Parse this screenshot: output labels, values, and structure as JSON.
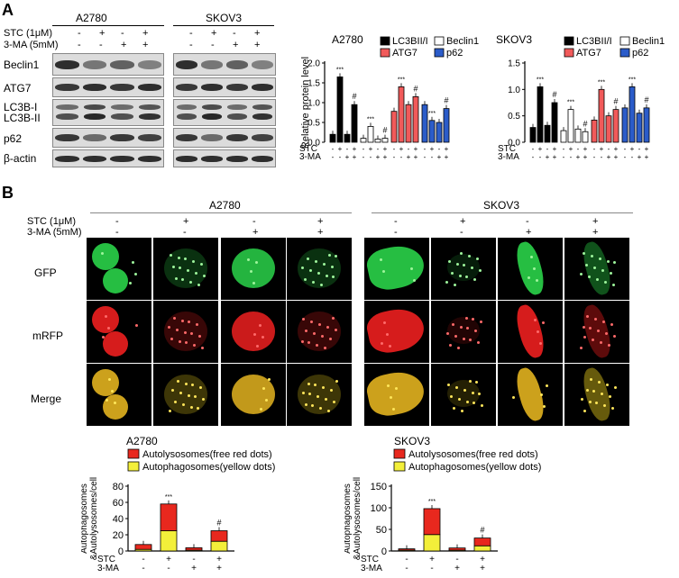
{
  "panel_a": {
    "letter": "A",
    "blot": {
      "cell_lines": [
        "A2780",
        "SKOV3"
      ],
      "row_labels": [
        "Beclin1",
        "ATG7",
        "LC3B-I",
        "LC3B-II",
        "p62",
        "β-actin"
      ],
      "treatments": [
        {
          "label": "STC (1μM)",
          "signs": [
            "-",
            "+",
            "-",
            "+"
          ]
        },
        {
          "label": "3-MA (5mM)",
          "signs": [
            "-",
            "-",
            "+",
            "+"
          ]
        }
      ]
    }
  },
  "panel_b": {
    "letter": "B",
    "cell_lines": [
      "A2780",
      "SKOV3"
    ],
    "treatments": [
      {
        "label": "STC (1μM)",
        "signs": [
          "-",
          "+",
          "-",
          "+"
        ]
      },
      {
        "label": "3-MA (5mM)",
        "signs": [
          "-",
          "-",
          "+",
          "+"
        ]
      }
    ],
    "row_labels": [
      "GFP",
      "mRFP",
      "Merge"
    ]
  },
  "colors": {
    "LC3BII/I": "#000000",
    "Beclin1": "#ffffff",
    "ATG7": "#f15a5a",
    "p62": "#2b5cc9",
    "autolysosomes": "#e8281e",
    "autophagosomes": "#f3ef3a"
  },
  "chart_data": [
    {
      "type": "bar",
      "title": "A2780",
      "ylabel": "Relative protein level",
      "ylim": [
        0,
        2.0
      ],
      "yticks": [
        "0.0",
        "0.5",
        "1.0",
        "1.5",
        "2.0"
      ],
      "legend": [
        "LC3BII/I",
        "Beclin1",
        "ATG7",
        "p62"
      ],
      "categories": [
        "-/-",
        "+/-",
        "-/+",
        "+/+"
      ],
      "series": [
        {
          "name": "LC3BII/I",
          "values": [
            0.2,
            1.65,
            0.2,
            0.95
          ],
          "annotations": [
            "",
            "***",
            "",
            "#"
          ]
        },
        {
          "name": "Beclin1",
          "values": [
            0.1,
            0.4,
            0.08,
            0.1
          ],
          "annotations": [
            "",
            "***",
            "",
            "#"
          ]
        },
        {
          "name": "ATG7",
          "values": [
            0.78,
            1.4,
            0.95,
            1.15
          ],
          "annotations": [
            "",
            "***",
            "",
            "#"
          ]
        },
        {
          "name": "p62",
          "values": [
            0.95,
            0.55,
            0.5,
            0.85
          ],
          "annotations": [
            "",
            "***",
            "",
            "#"
          ]
        }
      ],
      "x_rows": [
        {
          "label": "STC",
          "signs": [
            "-",
            "+",
            "-",
            "+"
          ]
        },
        {
          "label": "3-MA",
          "signs": [
            "-",
            "-",
            "+",
            "+"
          ]
        }
      ]
    },
    {
      "type": "bar",
      "title": "SKOV3",
      "ylabel": "",
      "ylim": [
        0,
        1.5
      ],
      "yticks": [
        "0.0",
        "0.5",
        "1.0",
        "1.5"
      ],
      "legend": [
        "LC3BII/I",
        "Beclin1",
        "ATG7",
        "p62"
      ],
      "categories": [
        "-/-",
        "+/-",
        "-/+",
        "+/+"
      ],
      "series": [
        {
          "name": "LC3BII/I",
          "values": [
            0.28,
            1.05,
            0.32,
            0.75
          ],
          "annotations": [
            "",
            "***",
            "",
            "#"
          ]
        },
        {
          "name": "Beclin1",
          "values": [
            0.22,
            0.62,
            0.25,
            0.2
          ],
          "annotations": [
            "",
            "***",
            "",
            "#"
          ]
        },
        {
          "name": "ATG7",
          "values": [
            0.42,
            1.0,
            0.5,
            0.62
          ],
          "annotations": [
            "",
            "***",
            "",
            "#"
          ]
        },
        {
          "name": "p62",
          "values": [
            0.65,
            1.05,
            0.55,
            0.65
          ],
          "annotations": [
            "",
            "***",
            "",
            "#"
          ]
        }
      ],
      "x_rows": [
        {
          "label": "STC",
          "signs": [
            "-",
            "+",
            "-",
            "+"
          ]
        },
        {
          "label": "3-MA",
          "signs": [
            "-",
            "-",
            "+",
            "+"
          ]
        }
      ]
    },
    {
      "type": "bar",
      "title": "A2780",
      "ylabel": "Autophagosomes &Autolysosomes/cell",
      "ylim": [
        0,
        80
      ],
      "yticks": [
        "0",
        "20",
        "40",
        "60",
        "80"
      ],
      "legend": [
        "Autolysosomes(free red dots)",
        "Autophagosomes(yellow dots)"
      ],
      "categories": [
        "-/-",
        "+/-",
        "-/+",
        "+/+"
      ],
      "series": [
        {
          "name": "Autophagosomes(yellow dots)",
          "values": [
            2,
            25,
            1,
            12
          ]
        },
        {
          "name": "Autolysosomes(free red dots)",
          "values": [
            6,
            33,
            3,
            13
          ],
          "annotations": [
            "",
            "***",
            "",
            "#"
          ]
        }
      ],
      "x_rows": [
        {
          "label": "STC",
          "signs": [
            "-",
            "+",
            "-",
            "+"
          ]
        },
        {
          "label": "3-MA",
          "signs": [
            "-",
            "-",
            "+",
            "+"
          ]
        }
      ]
    },
    {
      "type": "bar",
      "title": "SKOV3",
      "ylabel": "Autophagosomes &Autolysosomes/cell",
      "ylim": [
        0,
        150
      ],
      "yticks": [
        "0",
        "50",
        "100",
        "150"
      ],
      "legend": [
        "Autolysosomes(free red dots)",
        "Autophagosomes(yellow dots)"
      ],
      "categories": [
        "-/-",
        "+/-",
        "-/+",
        "+/+"
      ],
      "series": [
        {
          "name": "Autophagosomes(yellow dots)",
          "values": [
            2,
            38,
            2,
            12
          ]
        },
        {
          "name": "Autolysosomes(free red dots)",
          "values": [
            3,
            60,
            5,
            18
          ],
          "annotations": [
            "",
            "***",
            "",
            "#"
          ]
        }
      ],
      "x_rows": [
        {
          "label": "STC",
          "signs": [
            "-",
            "+",
            "-",
            "+"
          ]
        },
        {
          "label": "3-MA",
          "signs": [
            "-",
            "-",
            "+",
            "+"
          ]
        }
      ]
    }
  ]
}
